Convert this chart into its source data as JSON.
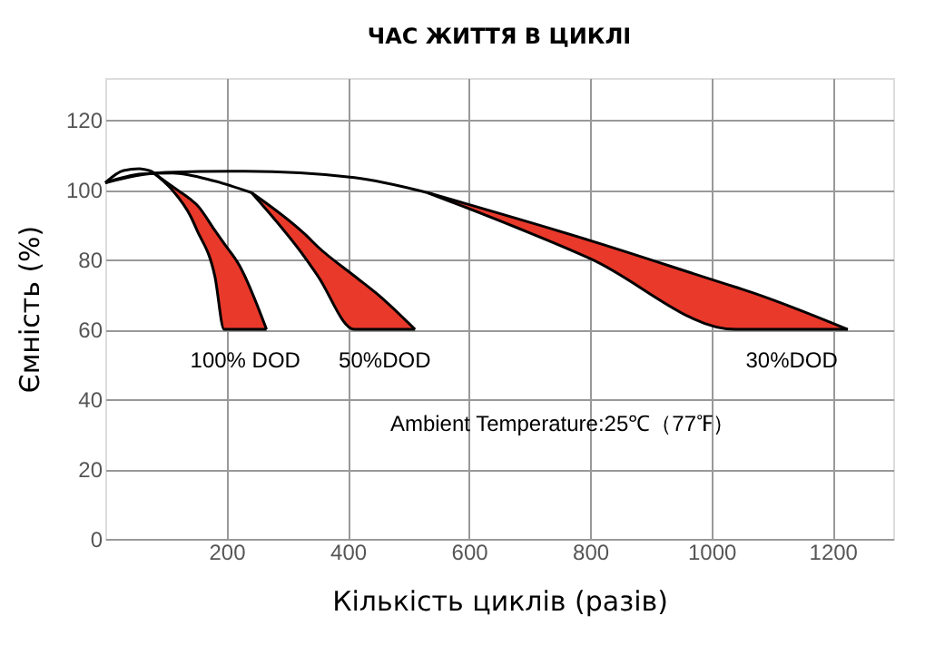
{
  "chart_data": {
    "type": "line",
    "title": "ЧАС ЖИТТЯ В ЦИКЛІ",
    "xlabel": "Кількість циклів (разів)",
    "ylabel": "Ємність (%)",
    "xlim": [
      0,
      1300
    ],
    "xticks": [
      200,
      400,
      600,
      800,
      1000,
      1200
    ],
    "ylim": [
      0,
      132
    ],
    "yticks": [
      0,
      20,
      40,
      60,
      80,
      100,
      120
    ],
    "grid": true,
    "series": [
      {
        "color": "#000000",
        "x": [
          0,
          30,
          56,
          76
        ],
        "values": [
          102,
          105.5,
          106,
          105.3
        ]
      },
      {
        "color": "#000000",
        "x": [
          0,
          60,
          111,
          180,
          241
        ],
        "values": [
          102,
          104.5,
          104.8,
          102.5,
          99.2
        ]
      },
      {
        "color": "#000000",
        "x": [
          0,
          100,
          231,
          411,
          531
        ],
        "values": [
          102,
          105,
          105.3,
          103.5,
          99.2
        ]
      },
      {
        "name": "100% DOD",
        "color": "#000000",
        "x": [
          76,
          110,
          141,
          151,
          181,
          196,
          221,
          266
        ],
        "values": [
          105.3,
          101,
          97.2,
          95.7,
          88.3,
          84.6,
          78.4,
          60
        ],
        "upper": [
          105.3,
          101,
          97.2,
          95.7,
          88.3,
          84.6,
          78.4,
          60
        ],
        "lower": [
          105.3,
          100,
          92.3,
          88.5,
          75,
          60,
          60,
          60
        ]
      },
      {
        "name": "50%DOD",
        "color": "#000000",
        "x": [
          241,
          331,
          351,
          411,
          451,
          511
        ],
        "values": [
          99.2,
          87,
          83.6,
          75.3,
          69.8,
          60
        ],
        "upper": [
          99.2,
          87,
          83.6,
          75.3,
          69.8,
          60
        ],
        "lower": [
          99.2,
          80.2,
          75.2,
          60,
          60,
          60
        ]
      },
      {
        "name": "30%DOD",
        "color": "#000000",
        "x": [
          531,
          801,
          1040,
          1051,
          1225
        ],
        "values": [
          99.2,
          85.4,
          72.1,
          71.5,
          60
        ],
        "upper": [
          99.2,
          85.4,
          72.1,
          71.5,
          60
        ],
        "lower": [
          99.2,
          80.2,
          60,
          60,
          60
        ]
      }
    ],
    "annotations": [
      "Ambient Temperature:25℃（77℉）"
    ]
  }
}
